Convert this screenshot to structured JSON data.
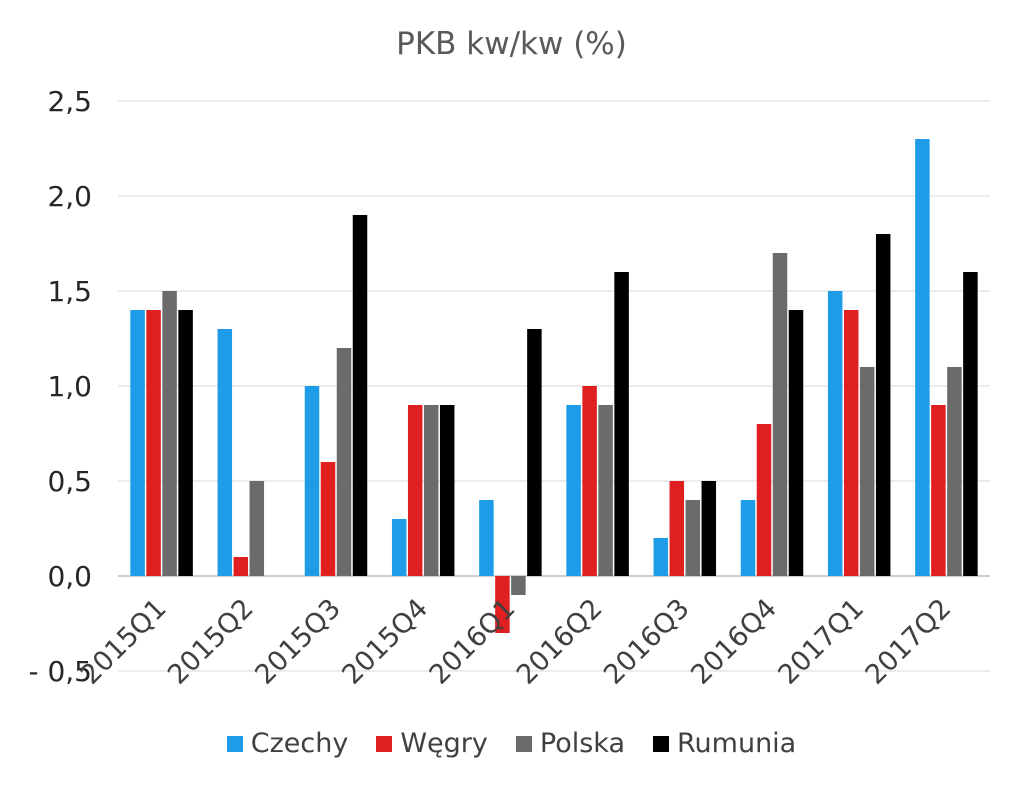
{
  "chart_data": {
    "type": "bar",
    "title": "PKB kw/kw (%)",
    "xlabel": "",
    "ylabel": "",
    "categories": [
      "2015Q1",
      "2015Q2",
      "2015Q3",
      "2015Q4",
      "2016Q1",
      "2016Q2",
      "2016Q3",
      "2016Q4",
      "2017Q1",
      "2017Q2"
    ],
    "y_tick_labels": [
      "- 0,5",
      "0,0",
      "0,5",
      "1,0",
      "1,5",
      "2,0",
      "2,5"
    ],
    "y_ticks": [
      -0.5,
      0,
      0.5,
      1.0,
      1.5,
      2.0,
      2.5
    ],
    "ylim": [
      -0.5,
      2.5
    ],
    "grid": true,
    "legend_position": "bottom",
    "series": [
      {
        "name": "Czechy",
        "color": "#1f9ce8",
        "values": [
          1.4,
          1.3,
          1.0,
          0.3,
          0.4,
          0.9,
          0.2,
          0.4,
          1.5,
          2.3
        ]
      },
      {
        "name": "Węgry",
        "color": "#e02020",
        "values": [
          1.4,
          0.1,
          0.6,
          0.9,
          -0.3,
          1.0,
          0.5,
          0.8,
          1.4,
          0.9
        ]
      },
      {
        "name": "Polska",
        "color": "#6b6b6b",
        "values": [
          1.5,
          0.5,
          1.2,
          0.9,
          -0.1,
          0.9,
          0.4,
          1.7,
          1.1,
          1.1
        ]
      },
      {
        "name": "Rumunia",
        "color": "#000000",
        "values": [
          1.4,
          null,
          1.9,
          0.9,
          1.3,
          1.6,
          0.5,
          1.4,
          1.8,
          1.6
        ]
      }
    ]
  }
}
